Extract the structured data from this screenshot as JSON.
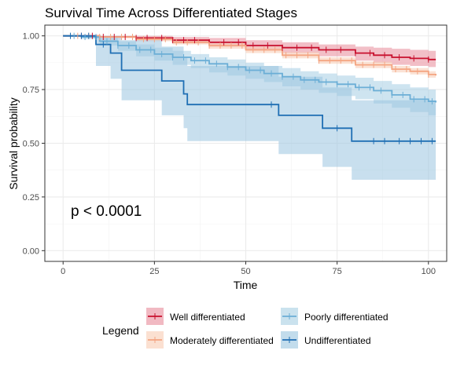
{
  "chart_data": {
    "type": "line",
    "subtype": "kaplan-meier-step",
    "title": "Survival Time Across Differentiated Stages",
    "xlabel": "Time",
    "ylabel": "Survival probability",
    "xlim": [
      -5,
      105
    ],
    "ylim": [
      -0.05,
      1.05
    ],
    "xticks": [
      0,
      25,
      50,
      75,
      100
    ],
    "yticks": [
      0.0,
      0.25,
      0.5,
      0.75,
      1.0
    ],
    "xtick_labels": [
      "0",
      "25",
      "50",
      "75",
      "100"
    ],
    "ytick_labels": [
      "0.00",
      "0.25",
      "0.50",
      "0.75",
      "1.00"
    ],
    "grid": true,
    "annotation": "p < 0.0001",
    "legend": {
      "title": "Legend",
      "position": "bottom"
    },
    "series": [
      {
        "name": "Well differentiated",
        "color": "#C8102E",
        "band_color": "#E88A99",
        "x": [
          0,
          10,
          20,
          30,
          40,
          50,
          60,
          70,
          80,
          85,
          90,
          95,
          100,
          102
        ],
        "y": [
          1.0,
          0.995,
          0.99,
          0.98,
          0.97,
          0.955,
          0.945,
          0.935,
          0.92,
          0.91,
          0.9,
          0.895,
          0.89,
          0.89
        ],
        "lower": [
          1.0,
          0.99,
          0.98,
          0.965,
          0.95,
          0.935,
          0.92,
          0.905,
          0.885,
          0.875,
          0.865,
          0.86,
          0.855,
          0.855
        ],
        "upper": [
          1.0,
          1.0,
          1.0,
          0.995,
          0.99,
          0.98,
          0.97,
          0.96,
          0.95,
          0.945,
          0.94,
          0.935,
          0.93,
          0.93
        ],
        "censor_x": [
          5,
          8,
          11,
          14,
          17,
          20,
          23,
          27,
          30,
          33,
          36,
          40,
          44,
          48,
          52,
          56,
          60,
          64,
          68,
          72,
          76,
          80,
          84,
          88,
          92,
          96,
          100
        ]
      },
      {
        "name": "Moderately differentiated",
        "color": "#F4A582",
        "band_color": "#F8CBB2",
        "x": [
          0,
          10,
          20,
          30,
          40,
          50,
          60,
          70,
          80,
          90,
          95,
          100,
          102
        ],
        "y": [
          1.0,
          0.995,
          0.985,
          0.97,
          0.955,
          0.935,
          0.91,
          0.885,
          0.865,
          0.845,
          0.835,
          0.82,
          0.815
        ],
        "lower": [
          1.0,
          0.99,
          0.975,
          0.96,
          0.94,
          0.92,
          0.895,
          0.87,
          0.85,
          0.83,
          0.82,
          0.805,
          0.8
        ],
        "upper": [
          1.0,
          1.0,
          0.995,
          0.985,
          0.97,
          0.95,
          0.925,
          0.9,
          0.88,
          0.86,
          0.85,
          0.835,
          0.83
        ],
        "censor_x": [
          4,
          7,
          10,
          13,
          16,
          19,
          22,
          25,
          28,
          31,
          34,
          37,
          40,
          43,
          46,
          49,
          52,
          55,
          58,
          61,
          64,
          67,
          70,
          73,
          76,
          79,
          82,
          85,
          88,
          91,
          94,
          97,
          100
        ]
      },
      {
        "name": "Poorly differentiated",
        "color": "#6BAED6",
        "band_color": "#A6CEE3",
        "x": [
          0,
          5,
          10,
          15,
          20,
          25,
          30,
          35,
          40,
          45,
          50,
          55,
          60,
          65,
          70,
          75,
          80,
          85,
          90,
          95,
          100,
          102
        ],
        "y": [
          1.0,
          0.995,
          0.975,
          0.955,
          0.935,
          0.915,
          0.9,
          0.885,
          0.87,
          0.855,
          0.84,
          0.825,
          0.81,
          0.795,
          0.785,
          0.775,
          0.76,
          0.745,
          0.725,
          0.705,
          0.695,
          0.69
        ],
        "lower": [
          1.0,
          0.985,
          0.955,
          0.93,
          0.905,
          0.885,
          0.865,
          0.85,
          0.83,
          0.815,
          0.8,
          0.785,
          0.765,
          0.75,
          0.735,
          0.72,
          0.705,
          0.685,
          0.665,
          0.645,
          0.63,
          0.625
        ],
        "upper": [
          1.0,
          1.0,
          0.99,
          0.975,
          0.96,
          0.945,
          0.93,
          0.915,
          0.9,
          0.89,
          0.875,
          0.86,
          0.85,
          0.835,
          0.825,
          0.815,
          0.805,
          0.79,
          0.775,
          0.76,
          0.75,
          0.745
        ],
        "censor_x": [
          3,
          6,
          9,
          12,
          15,
          18,
          21,
          24,
          27,
          30,
          33,
          36,
          39,
          42,
          45,
          48,
          51,
          54,
          57,
          60,
          63,
          66,
          69,
          72,
          75,
          78,
          81,
          84,
          87,
          90,
          93,
          96,
          99,
          101
        ]
      },
      {
        "name": "Undifferentiated",
        "color": "#1F6FB4",
        "band_color": "#9AC4E0",
        "x": [
          0,
          9,
          13,
          16,
          27,
          33,
          34,
          59,
          71,
          79,
          102
        ],
        "y": [
          1.0,
          0.96,
          0.92,
          0.84,
          0.79,
          0.73,
          0.68,
          0.63,
          0.57,
          0.51,
          0.51
        ],
        "lower": [
          1.0,
          0.86,
          0.8,
          0.7,
          0.63,
          0.57,
          0.51,
          0.45,
          0.39,
          0.33,
          0.33
        ],
        "upper": [
          1.0,
          1.0,
          1.0,
          0.98,
          0.95,
          0.9,
          0.86,
          0.81,
          0.76,
          0.7,
          0.7
        ],
        "censor_x": [
          2,
          5,
          7,
          11,
          57,
          75,
          85,
          88,
          92,
          95,
          98,
          101
        ]
      }
    ]
  }
}
